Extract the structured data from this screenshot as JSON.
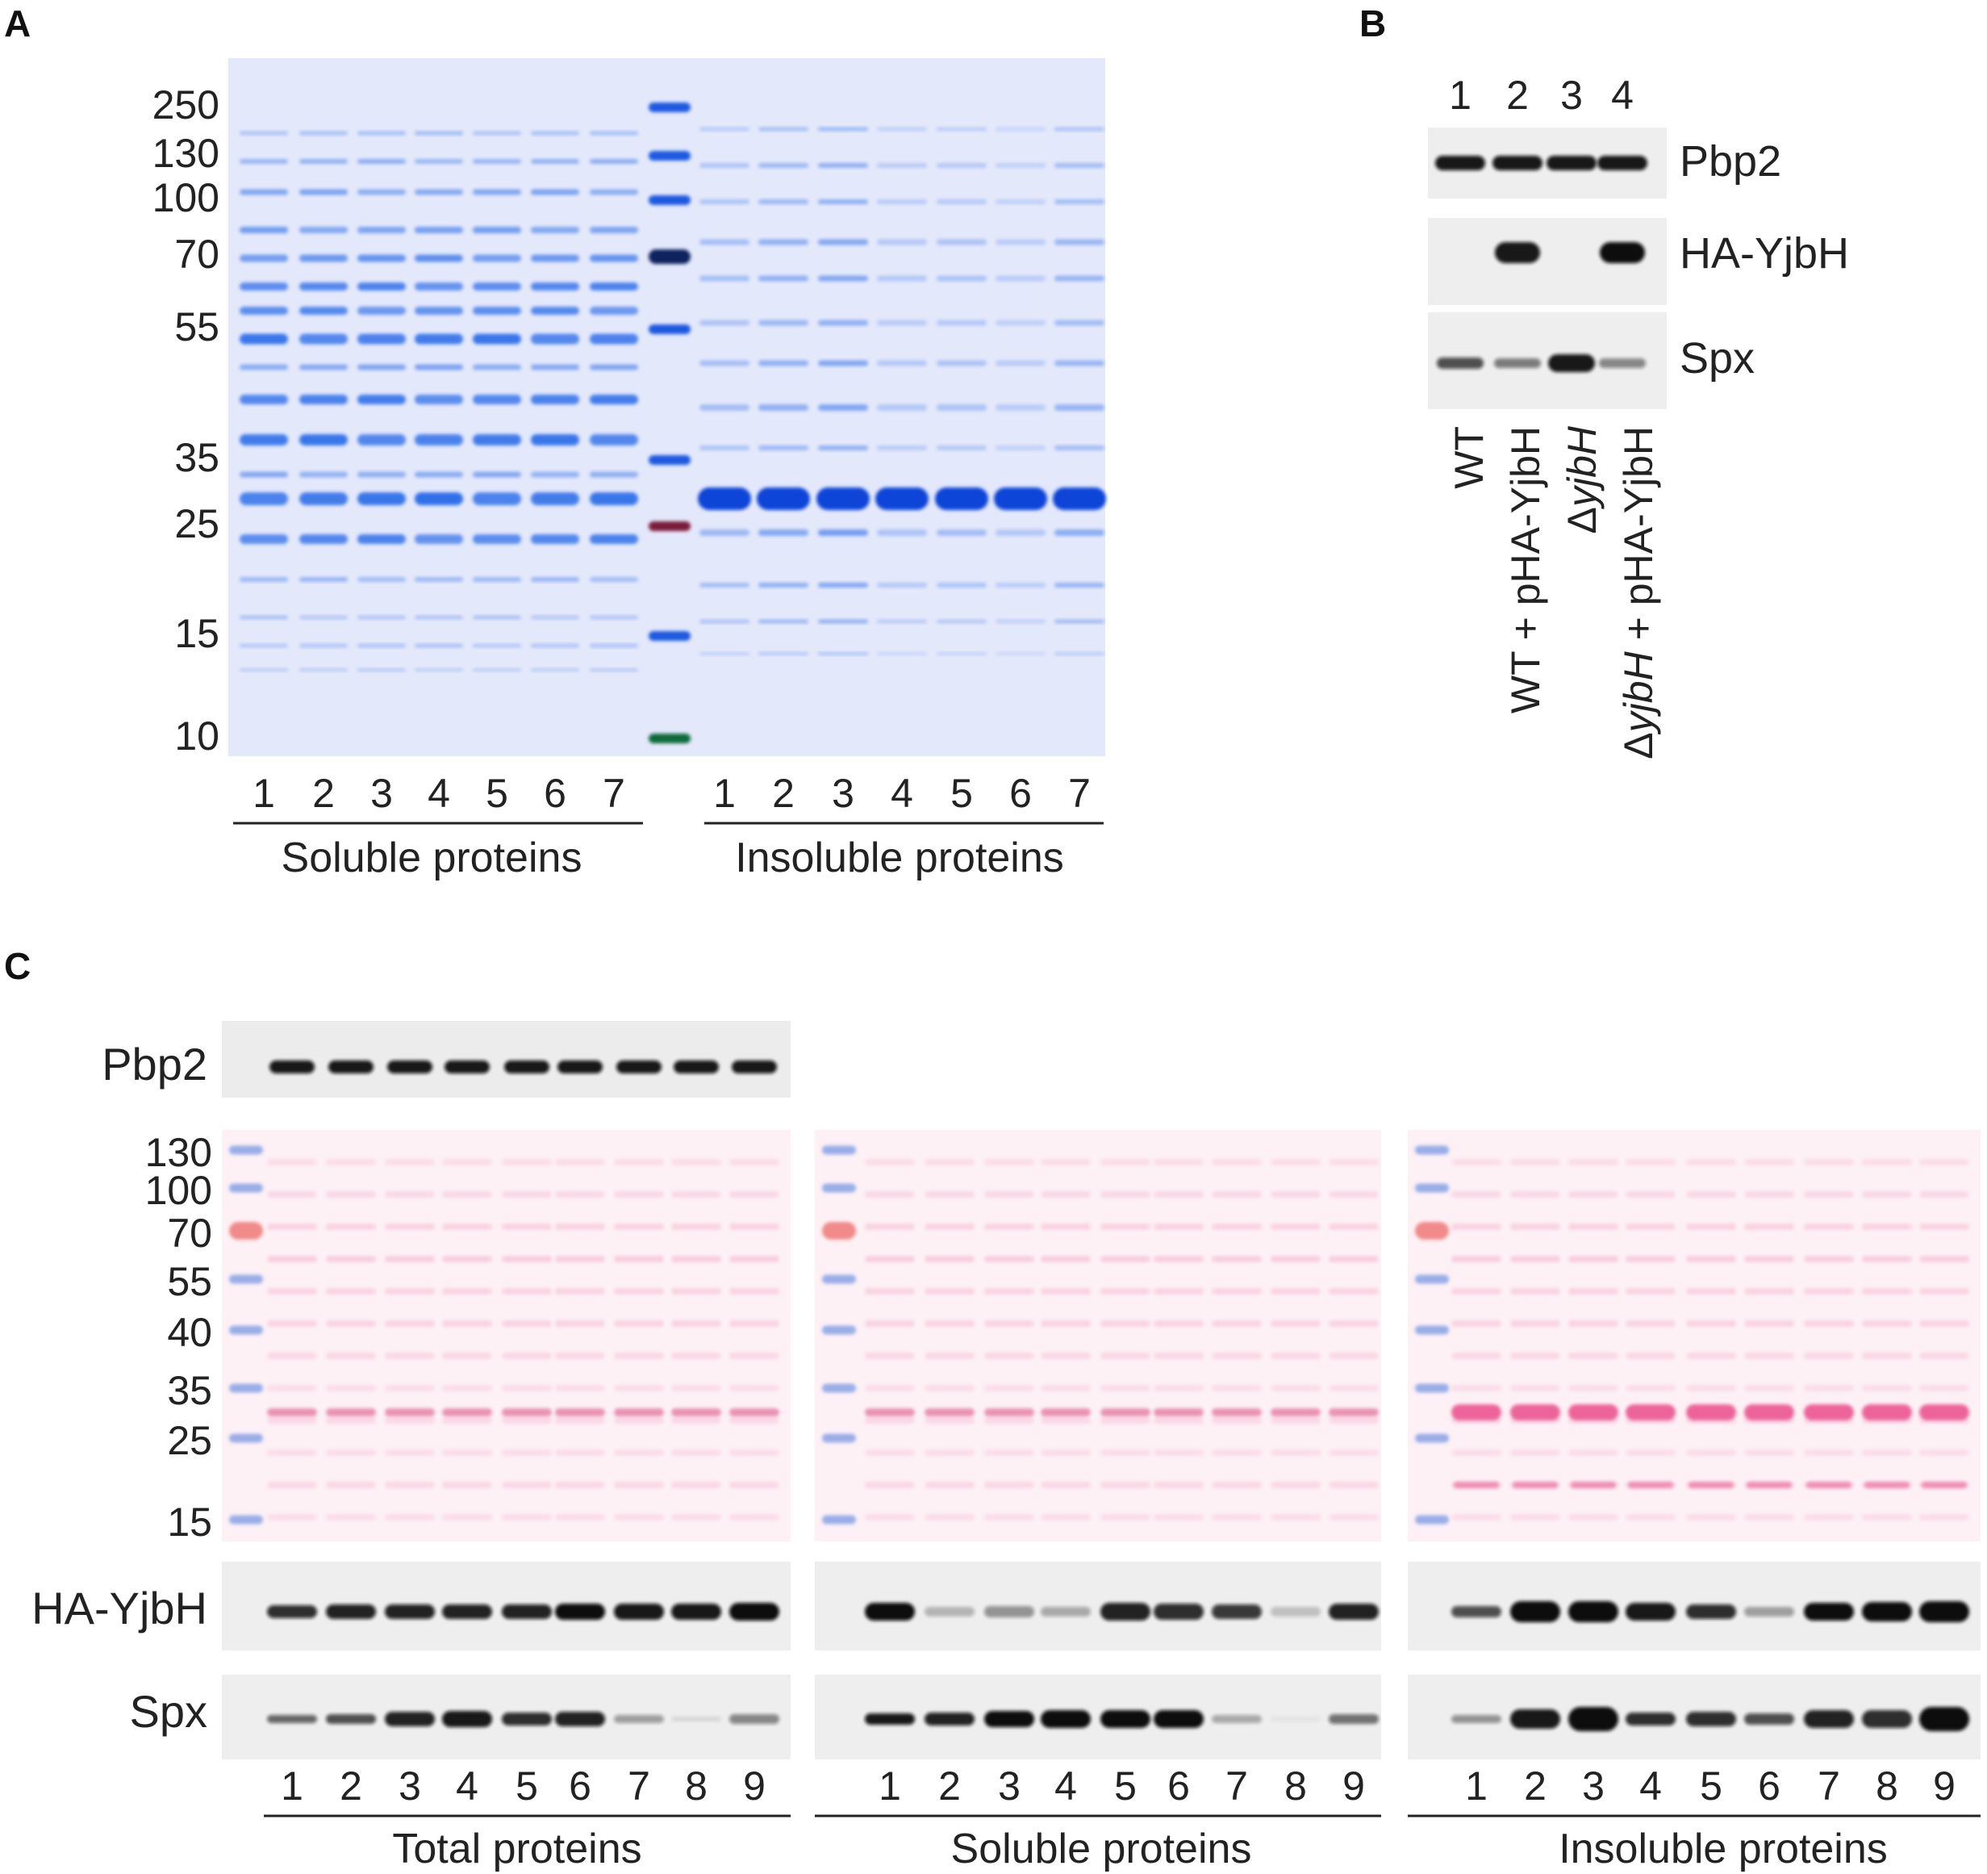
{
  "panel_a": {
    "letter": "A",
    "mw_markers": [
      "250",
      "130",
      "100",
      "70",
      "55",
      "35",
      "25",
      "15",
      "10"
    ],
    "lanes_soluble": [
      "1",
      "2",
      "3",
      "4",
      "5",
      "6",
      "7"
    ],
    "lanes_insoluble": [
      "1",
      "2",
      "3",
      "4",
      "5",
      "6",
      "7"
    ],
    "group_soluble": "Soluble proteins",
    "group_insoluble": "Insoluble proteins",
    "colors": {
      "gel_bg": "#e4e8fb",
      "band": "#1a63e8",
      "ladder": "#1a5ae0"
    }
  },
  "panel_b": {
    "letter": "B",
    "lanes": [
      "1",
      "2",
      "3",
      "4"
    ],
    "blot_labels": [
      "Pbp2",
      "HA-YjbH",
      "Spx"
    ],
    "sample_labels": [
      {
        "prefix": "",
        "italic": "",
        "suffix": "WT"
      },
      {
        "prefix": "",
        "italic": "",
        "suffix": "WT + pHA-YjbH"
      },
      {
        "prefix": "Δ",
        "italic": "yjbH",
        "suffix": ""
      },
      {
        "prefix": "Δ",
        "italic": "yjbH",
        "suffix": " + pHA-YjbH"
      }
    ]
  },
  "panel_c": {
    "letter": "C",
    "pbp2_label": "Pbp2",
    "mw_markers": [
      "130",
      "100",
      "70",
      "55",
      "40",
      "35",
      "25",
      "15"
    ],
    "ha_label": "HA-YjbH",
    "spx_label": "Spx",
    "lanes": [
      "1",
      "2",
      "3",
      "4",
      "5",
      "6",
      "7",
      "8",
      "9"
    ],
    "groups": [
      "Total proteins",
      "Soluble proteins",
      "Insoluble proteins"
    ],
    "colors": {
      "ponceau_bg": "#fdf1f6",
      "ponceau_band": "#f08cb2",
      "ladder_blue": "#8fa6e6",
      "ladder_red": "#f07f7f"
    }
  }
}
